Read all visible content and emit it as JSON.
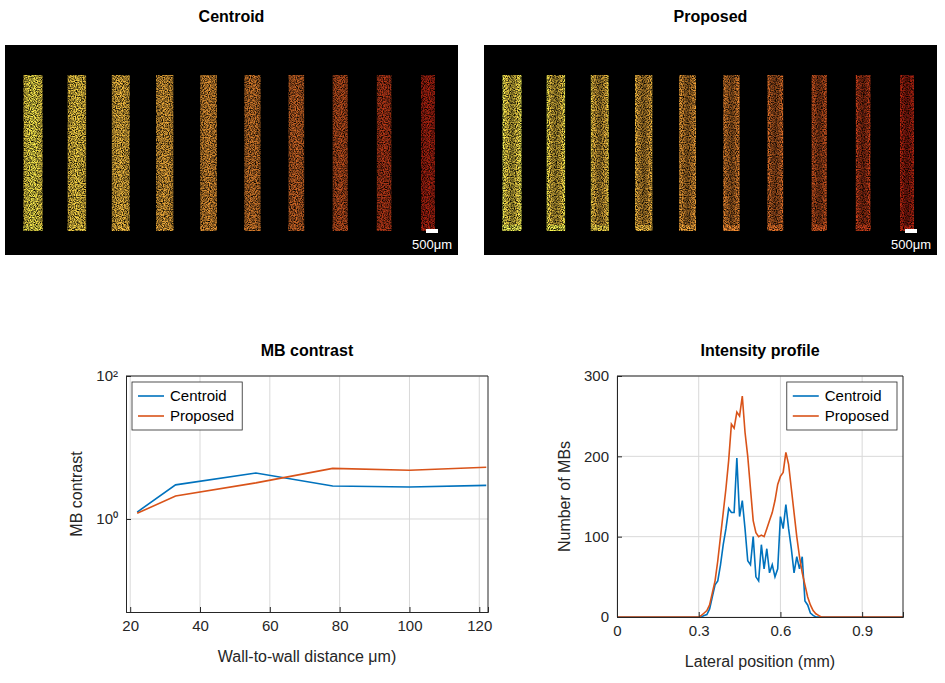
{
  "chart_data": [
    {
      "type": "image",
      "title": "Centroid",
      "annotations": [
        "500μm"
      ]
    },
    {
      "type": "image",
      "title": "Proposed",
      "annotations": [
        "500μm"
      ]
    },
    {
      "type": "line",
      "title": "MB contrast",
      "x_label": "Wall-to-wall distance μm)",
      "y_label": "MB contrast",
      "x": [
        22,
        33,
        56,
        78,
        100,
        122
      ],
      "series": [
        {
          "name": "Centroid",
          "color": "#0072bd",
          "values": [
            1.25,
            3.0,
            4.4,
            2.9,
            2.8,
            2.95
          ]
        },
        {
          "name": "Proposed",
          "color": "#d95319",
          "values": [
            1.2,
            2.1,
            3.2,
            5.1,
            4.8,
            5.3
          ]
        }
      ],
      "xlim": [
        18.8,
        122.5
      ],
      "xticks": [
        20,
        40,
        60,
        80,
        100,
        120
      ],
      "ylim": [
        0.05,
        100
      ],
      "yticks": [
        {
          "value": 1,
          "label": "10⁰"
        },
        {
          "value": 100,
          "label": "10²"
        }
      ],
      "log": "y",
      "grid": true,
      "legend": "upper left"
    },
    {
      "type": "line",
      "title": "Intensity profile",
      "x_label": "Lateral position (mm)",
      "y_label": "Number of MBs",
      "x": [
        0,
        0.1,
        0.2,
        0.25,
        0.3,
        0.31,
        0.32,
        0.33,
        0.34,
        0.35,
        0.36,
        0.37,
        0.38,
        0.39,
        0.4,
        0.41,
        0.42,
        0.43,
        0.44,
        0.45,
        0.46,
        0.47,
        0.48,
        0.49,
        0.5,
        0.51,
        0.52,
        0.53,
        0.54,
        0.55,
        0.56,
        0.57,
        0.58,
        0.59,
        0.6,
        0.61,
        0.62,
        0.63,
        0.64,
        0.65,
        0.66,
        0.67,
        0.68,
        0.69,
        0.7,
        0.71,
        0.72,
        0.73,
        0.74,
        0.75,
        0.76,
        0.77,
        0.78,
        0.85,
        0.95,
        1.05
      ],
      "series": [
        {
          "name": "Centroid",
          "color": "#0072bd",
          "values": [
            0,
            0,
            0,
            0,
            0,
            0,
            2,
            3,
            10,
            25,
            40,
            45,
            65,
            90,
            110,
            135,
            130,
            130,
            198,
            125,
            145,
            110,
            70,
            65,
            100,
            50,
            45,
            90,
            60,
            85,
            55,
            65,
            50,
            60,
            125,
            110,
            140,
            110,
            85,
            55,
            75,
            60,
            75,
            20,
            15,
            5,
            2,
            0,
            0,
            0,
            0,
            0,
            0,
            0,
            0,
            0
          ]
        },
        {
          "name": "Proposed",
          "color": "#d95319",
          "values": [
            0,
            0,
            0,
            0,
            0,
            2,
            5,
            8,
            15,
            30,
            45,
            70,
            100,
            130,
            160,
            195,
            240,
            235,
            255,
            250,
            275,
            230,
            200,
            160,
            120,
            105,
            100,
            102,
            100,
            110,
            120,
            130,
            145,
            165,
            175,
            180,
            205,
            190,
            160,
            130,
            100,
            75,
            55,
            40,
            25,
            15,
            8,
            4,
            2,
            0,
            0,
            0,
            0,
            0,
            0,
            0
          ]
        }
      ],
      "xlim": [
        0,
        1.05
      ],
      "xticks": [
        0,
        0.3,
        0.6,
        0.9
      ],
      "ylim": [
        0,
        300
      ],
      "yticks": [
        0,
        100,
        200,
        300
      ],
      "grid": true,
      "legend": "upper right"
    }
  ]
}
